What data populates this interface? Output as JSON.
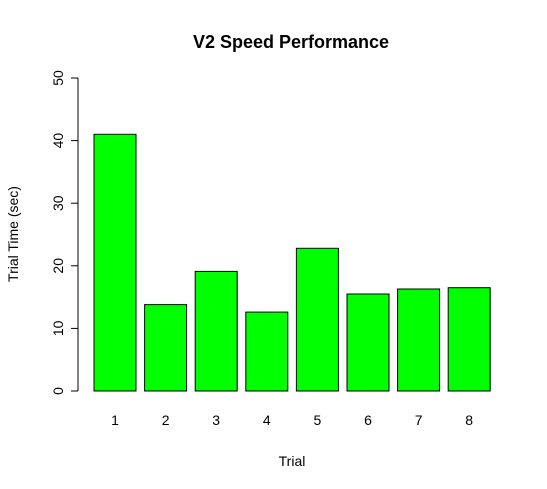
{
  "chart_data": {
    "type": "bar",
    "title": "V2 Speed Performance",
    "xlabel": "Trial",
    "ylabel": "Trial Time (sec)",
    "categories": [
      "1",
      "2",
      "3",
      "4",
      "5",
      "6",
      "7",
      "8"
    ],
    "values": [
      41.0,
      13.8,
      19.1,
      12.6,
      22.8,
      15.5,
      16.3,
      16.5
    ],
    "ylim": [
      0,
      50
    ],
    "yticks": [
      0,
      10,
      20,
      30,
      40,
      50
    ],
    "grid": false,
    "legend": "none",
    "bar_color": "#00ff00",
    "bar_border_color": "#000000"
  }
}
